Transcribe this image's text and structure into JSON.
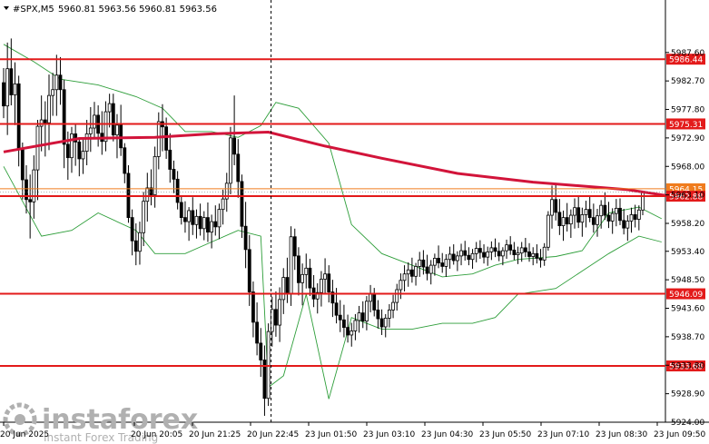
{
  "header": {
    "symbol": "#SPX,M5",
    "ohlc": "5960.81 5963.56 5960.81 5963.56"
  },
  "watermark": {
    "brand": "instaforex",
    "tagline": "Instant Forex Trading"
  },
  "colors": {
    "candle": "#000000",
    "ma": "#d2143a",
    "bands": "#2e9e3a",
    "level": "#e31a1a",
    "level_orange": "#f07c1e",
    "current": "#8a8a8a"
  },
  "chart_data": {
    "type": "candlestick",
    "ylim": [
      5924.0,
      5991.0
    ],
    "y_ticks": [
      "5987.60",
      "5982.70",
      "5977.80",
      "5972.90",
      "5968.00",
      "5963.10",
      "5958.20",
      "5953.40",
      "5948.50",
      "5943.60",
      "5938.70",
      "5933.80",
      "5928.90",
      "5924.00"
    ],
    "x_ticks": [
      "20 Jun 2025",
      "20 Jun 20:05",
      "20 Jun 21:25",
      "20 Jun 22:45",
      "23 Jun 01:50",
      "23 Jun 03:10",
      "23 Jun 04:30",
      "23 Jun 05:50",
      "23 Jun 07:10",
      "23 Jun 08:30",
      "23 Jun 09:50"
    ],
    "levels": [
      {
        "label": "5986.44",
        "value": 5986.44,
        "color": "#e31a1a"
      },
      {
        "label": "5975.31",
        "value": 5975.31,
        "color": "#e31a1a"
      },
      {
        "label": "5964.15",
        "value": 5964.15,
        "color": "#f07c1e"
      },
      {
        "label": "5962.88",
        "value": 5962.88,
        "color": "#e31a1a"
      },
      {
        "label": "5946.09",
        "value": 5946.09,
        "color": "#e31a1a"
      },
      {
        "label": "5933.68",
        "value": 5933.68,
        "color": "#e31a1a"
      }
    ],
    "current_price": 5963.56,
    "session_break_index": 70,
    "ma_values": [
      [
        0,
        5970.5
      ],
      [
        20,
        5972.8
      ],
      [
        40,
        5973.0
      ],
      [
        55,
        5973.6
      ],
      [
        70,
        5973.9
      ],
      [
        85,
        5971.5
      ],
      [
        100,
        5969.4
      ],
      [
        120,
        5966.8
      ],
      [
        140,
        5965.3
      ],
      [
        165,
        5964.0
      ],
      [
        176,
        5962.9
      ]
    ],
    "bands_upper": [
      [
        0,
        5989
      ],
      [
        8,
        5986
      ],
      [
        15,
        5983
      ],
      [
        25,
        5982
      ],
      [
        35,
        5980
      ],
      [
        42,
        5978
      ],
      [
        48,
        5974
      ],
      [
        55,
        5974
      ],
      [
        62,
        5973
      ],
      [
        68,
        5975
      ],
      [
        72,
        5979
      ],
      [
        78,
        5978
      ],
      [
        86,
        5972
      ],
      [
        92,
        5958
      ],
      [
        100,
        5953
      ],
      [
        108,
        5951
      ],
      [
        116,
        5949
      ],
      [
        124,
        5949.5
      ],
      [
        130,
        5951
      ],
      [
        136,
        5952
      ],
      [
        146,
        5952.5
      ],
      [
        153,
        5953.5
      ],
      [
        160,
        5960
      ],
      [
        168,
        5961
      ],
      [
        174,
        5959
      ]
    ],
    "bands_lower": [
      [
        0,
        5968
      ],
      [
        5,
        5962
      ],
      [
        10,
        5956
      ],
      [
        18,
        5957
      ],
      [
        25,
        5960
      ],
      [
        35,
        5957
      ],
      [
        40,
        5953
      ],
      [
        48,
        5953
      ],
      [
        55,
        5955
      ],
      [
        62,
        5957
      ],
      [
        68,
        5956
      ],
      [
        70,
        5930
      ],
      [
        74,
        5932
      ],
      [
        80,
        5946
      ],
      [
        86,
        5928
      ],
      [
        92,
        5942
      ],
      [
        100,
        5940
      ],
      [
        108,
        5940
      ],
      [
        116,
        5941
      ],
      [
        124,
        5941
      ],
      [
        130,
        5942
      ],
      [
        136,
        5946
      ],
      [
        146,
        5947
      ],
      [
        153,
        5950
      ],
      [
        160,
        5953
      ],
      [
        168,
        5956
      ],
      [
        174,
        5955
      ]
    ],
    "candles": [
      [
        5982.4,
        5984.9,
        5976.3,
        5978.4
      ],
      [
        5978.4,
        5989.3,
        5973.4,
        5984.8
      ],
      [
        5984.8,
        5990.0,
        5978.5,
        5980.3
      ],
      [
        5980.3,
        5985.9,
        5975.1,
        5982.2
      ],
      [
        5982.2,
        5983.6,
        5968.0,
        5971.1
      ],
      [
        5971.1,
        5972.1,
        5962.3,
        5965.7
      ],
      [
        5965.7,
        5968.2,
        5959.9,
        5962.3
      ],
      [
        5962.3,
        5966.6,
        5955.6,
        5961.9
      ],
      [
        5961.9,
        5969.9,
        5959.0,
        5967.4
      ],
      [
        5967.4,
        5976.0,
        5962.2,
        5974.9
      ],
      [
        5974.9,
        5980.2,
        5970.6,
        5976.0
      ],
      [
        5976.0,
        5979.2,
        5969.7,
        5975.5
      ],
      [
        5975.5,
        5983.8,
        5970.8,
        5980.2
      ],
      [
        5980.2,
        5984.1,
        5976.7,
        5981.2
      ],
      [
        5981.2,
        5987.2,
        5976.7,
        5983.7
      ],
      [
        5983.7,
        5986.8,
        5978.6,
        5981.2
      ],
      [
        5981.2,
        5982.9,
        5967.7,
        5971.8
      ],
      [
        5971.8,
        5974.0,
        5965.7,
        5969.5
      ],
      [
        5969.5,
        5974.8,
        5966.9,
        5973.6
      ],
      [
        5973.6,
        5975.2,
        5968.1,
        5972.2
      ],
      [
        5972.2,
        5972.8,
        5966.3,
        5969.3
      ],
      [
        5969.3,
        5972.6,
        5966.7,
        5970.6
      ],
      [
        5970.6,
        5976.0,
        5968.2,
        5973.6
      ],
      [
        5973.6,
        5978.2,
        5970.5,
        5974.6
      ],
      [
        5974.6,
        5979.1,
        5973.0,
        5976.8
      ],
      [
        5976.8,
        5978.5,
        5971.4,
        5973.7
      ],
      [
        5973.7,
        5977.5,
        5970.0,
        5972.3
      ],
      [
        5972.3,
        5979.2,
        5970.6,
        5977.4
      ],
      [
        5977.4,
        5980.5,
        5974.7,
        5978.8
      ],
      [
        5978.8,
        5980.5,
        5972.3,
        5973.4
      ],
      [
        5973.4,
        5977.0,
        5969.4,
        5975.1
      ],
      [
        5975.1,
        5978.6,
        5969.8,
        5971.2
      ],
      [
        5971.2,
        5972.0,
        5965.1,
        5966.8
      ],
      [
        5966.8,
        5968.2,
        5958.3,
        5959.2
      ],
      [
        5959.2,
        5960.6,
        5952.7,
        5955.2
      ],
      [
        5955.2,
        5958.2,
        5951.0,
        5953.4
      ],
      [
        5953.4,
        5958.5,
        5951.1,
        5956.6
      ],
      [
        5956.6,
        5963.6,
        5954.3,
        5962.0
      ],
      [
        5962.0,
        5966.9,
        5958.5,
        5964.3
      ],
      [
        5964.3,
        5967.5,
        5961.3,
        5963.1
      ],
      [
        5963.1,
        5971.4,
        5960.9,
        5969.7
      ],
      [
        5969.7,
        5977.3,
        5967.5,
        5975.7
      ],
      [
        5975.7,
        5978.7,
        5970.6,
        5974.8
      ],
      [
        5974.8,
        5976.4,
        5969.3,
        5970.8
      ],
      [
        5970.8,
        5973.7,
        5965.2,
        5967.5
      ],
      [
        5967.5,
        5969.0,
        5963.4,
        5965.8
      ],
      [
        5965.8,
        5967.2,
        5960.6,
        5961.8
      ],
      [
        5961.8,
        5963.0,
        5958.0,
        5959.2
      ],
      [
        5959.2,
        5962.0,
        5956.6,
        5958.5
      ],
      [
        5958.5,
        5961.0,
        5955.2,
        5960.4
      ],
      [
        5960.4,
        5962.7,
        5956.2,
        5958.0
      ],
      [
        5958.0,
        5960.6,
        5955.6,
        5959.4
      ],
      [
        5959.4,
        5961.6,
        5956.1,
        5957.3
      ],
      [
        5957.3,
        5960.3,
        5955.3,
        5959.2
      ],
      [
        5959.2,
        5961.8,
        5955.0,
        5956.7
      ],
      [
        5956.7,
        5959.7,
        5953.9,
        5958.5
      ],
      [
        5958.5,
        5961.3,
        5956.1,
        5957.6
      ],
      [
        5957.6,
        5961.6,
        5955.5,
        5960.6
      ],
      [
        5960.6,
        5964.0,
        5958.0,
        5962.4
      ],
      [
        5962.4,
        5966.9,
        5960.2,
        5965.1
      ],
      [
        5965.1,
        5974.8,
        5963.2,
        5972.9
      ],
      [
        5972.9,
        5980.2,
        5968.2,
        5970.1
      ],
      [
        5970.1,
        5972.7,
        5962.6,
        5965.4
      ],
      [
        5965.4,
        5966.6,
        5955.7,
        5957.7
      ],
      [
        5957.7,
        5961.9,
        5950.5,
        5953.7
      ],
      [
        5953.7,
        5956.2,
        5944.0,
        5946.4
      ],
      [
        5946.4,
        5948.2,
        5938.6,
        5941.2
      ],
      [
        5941.2,
        5944.6,
        5935.5,
        5937.6
      ],
      [
        5937.6,
        5940.2,
        5931.8,
        5934.7
      ],
      [
        5934.7,
        5937.2,
        5925.1,
        5928.1
      ],
      [
        5928.1,
        5941.0,
        5926.8,
        5939.6
      ],
      [
        5939.6,
        5945.6,
        5937.0,
        5943.4
      ],
      [
        5943.4,
        5946.5,
        5938.7,
        5940.7
      ],
      [
        5940.7,
        5947.2,
        5937.8,
        5945.1
      ],
      [
        5945.1,
        5950.5,
        5942.6,
        5948.9
      ],
      [
        5948.9,
        5952.3,
        5944.5,
        5946.1
      ],
      [
        5946.1,
        5957.7,
        5944.0,
        5955.9
      ],
      [
        5955.9,
        5957.3,
        5950.2,
        5952.6
      ],
      [
        5952.6,
        5954.1,
        5945.8,
        5948.0
      ],
      [
        5948.0,
        5951.3,
        5944.1,
        5949.4
      ],
      [
        5949.4,
        5953.0,
        5947.0,
        5950.5
      ],
      [
        5950.5,
        5952.1,
        5945.7,
        5947.1
      ],
      [
        5947.1,
        5949.3,
        5943.8,
        5945.2
      ],
      [
        5945.2,
        5947.9,
        5942.7,
        5946.3
      ],
      [
        5946.3,
        5950.0,
        5943.9,
        5948.6
      ],
      [
        5948.6,
        5952.2,
        5946.1,
        5949.5
      ],
      [
        5949.5,
        5951.0,
        5944.6,
        5946.4
      ],
      [
        5946.4,
        5948.5,
        5942.1,
        5944.5
      ],
      [
        5944.5,
        5947.1,
        5941.0,
        5942.4
      ],
      [
        5942.4,
        5945.0,
        5939.5,
        5941.6
      ],
      [
        5941.6,
        5944.2,
        5938.6,
        5940.3
      ],
      [
        5940.3,
        5942.5,
        5937.7,
        5939.0
      ],
      [
        5939.0,
        5941.1,
        5937.0,
        5939.7
      ],
      [
        5939.7,
        5942.6,
        5938.1,
        5941.5
      ],
      [
        5941.5,
        5944.0,
        5939.4,
        5942.8
      ],
      [
        5942.8,
        5944.8,
        5940.2,
        5941.4
      ],
      [
        5941.4,
        5945.7,
        5939.8,
        5944.8
      ],
      [
        5944.8,
        5947.6,
        5942.9,
        5946.0
      ],
      [
        5946.0,
        5947.1,
        5942.2,
        5943.3
      ],
      [
        5943.3,
        5945.0,
        5940.1,
        5941.8
      ],
      [
        5941.8,
        5943.4,
        5939.0,
        5940.4
      ],
      [
        5940.4,
        5942.6,
        5938.6,
        5941.9
      ],
      [
        5941.9,
        5944.3,
        5940.3,
        5943.3
      ],
      [
        5943.3,
        5945.9,
        5941.9,
        5944.6
      ],
      [
        5944.6,
        5947.8,
        5943.2,
        5946.8
      ],
      [
        5946.8,
        5949.6,
        5945.2,
        5948.4
      ],
      [
        5948.4,
        5951.0,
        5946.5,
        5949.5
      ],
      [
        5949.5,
        5951.5,
        5947.3,
        5950.2
      ],
      [
        5950.2,
        5952.3,
        5948.0,
        5949.1
      ],
      [
        5949.1,
        5951.4,
        5947.5,
        5950.8
      ],
      [
        5950.8,
        5953.3,
        5949.0,
        5951.9
      ],
      [
        5951.9,
        5953.6,
        5949.4,
        5950.7
      ],
      [
        5950.7,
        5952.8,
        5948.4,
        5949.6
      ],
      [
        5949.6,
        5951.9,
        5947.7,
        5951.0
      ],
      [
        5951.0,
        5953.0,
        5949.2,
        5952.2
      ],
      [
        5952.2,
        5954.4,
        5950.5,
        5951.4
      ],
      [
        5951.4,
        5953.1,
        5949.7,
        5950.8
      ],
      [
        5950.8,
        5952.9,
        5949.0,
        5952.0
      ],
      [
        5952.0,
        5954.2,
        5950.4,
        5952.9
      ],
      [
        5952.9,
        5954.6,
        5951.1,
        5951.8
      ],
      [
        5951.8,
        5953.4,
        5950.0,
        5952.6
      ],
      [
        5952.6,
        5954.7,
        5951.0,
        5953.5
      ],
      [
        5953.5,
        5955.2,
        5951.8,
        5952.7
      ],
      [
        5952.7,
        5954.1,
        5951.0,
        5952.0
      ],
      [
        5952.0,
        5953.8,
        5950.4,
        5953.0
      ],
      [
        5953.0,
        5955.0,
        5951.5,
        5953.9
      ],
      [
        5953.9,
        5955.3,
        5952.1,
        5953.2
      ],
      [
        5953.2,
        5954.6,
        5951.3,
        5952.4
      ],
      [
        5952.4,
        5954.2,
        5950.9,
        5953.3
      ],
      [
        5953.3,
        5955.1,
        5951.9,
        5954.0
      ],
      [
        5954.0,
        5955.6,
        5952.4,
        5953.4
      ],
      [
        5953.4,
        5954.9,
        5951.7,
        5952.6
      ],
      [
        5952.6,
        5954.1,
        5951.0,
        5953.5
      ],
      [
        5953.5,
        5955.4,
        5952.1,
        5954.5
      ],
      [
        5954.5,
        5956.0,
        5952.8,
        5953.6
      ],
      [
        5953.6,
        5955.0,
        5951.9,
        5952.8
      ],
      [
        5952.8,
        5954.2,
        5951.2,
        5953.1
      ],
      [
        5953.1,
        5955.0,
        5951.6,
        5954.0
      ],
      [
        5954.0,
        5955.7,
        5952.4,
        5953.3
      ],
      [
        5953.3,
        5954.8,
        5951.6,
        5952.5
      ],
      [
        5952.5,
        5954.1,
        5951.0,
        5953.0
      ],
      [
        5953.0,
        5954.6,
        5951.3,
        5952.2
      ],
      [
        5952.2,
        5953.8,
        5950.6,
        5951.9
      ],
      [
        5951.9,
        5954.8,
        5950.9,
        5954.1
      ],
      [
        5954.1,
        5960.3,
        5953.5,
        5959.6
      ],
      [
        5959.6,
        5964.7,
        5957.3,
        5962.3
      ],
      [
        5962.3,
        5964.8,
        5958.7,
        5960.1
      ],
      [
        5960.1,
        5962.4,
        5956.2,
        5957.8
      ],
      [
        5957.8,
        5960.4,
        5955.2,
        5959.2
      ],
      [
        5959.2,
        5961.7,
        5956.8,
        5958.1
      ],
      [
        5958.1,
        5960.6,
        5955.7,
        5959.6
      ],
      [
        5959.6,
        5962.5,
        5957.3,
        5960.9
      ],
      [
        5960.9,
        5962.8,
        5957.4,
        5958.4
      ],
      [
        5958.4,
        5960.9,
        5955.9,
        5959.7
      ],
      [
        5959.7,
        5962.1,
        5957.5,
        5960.6
      ],
      [
        5960.6,
        5962.9,
        5958.4,
        5959.2
      ],
      [
        5959.2,
        5961.6,
        5956.6,
        5958.0
      ],
      [
        5958.0,
        5960.7,
        5955.9,
        5959.5
      ],
      [
        5959.5,
        5962.2,
        5957.3,
        5961.3
      ],
      [
        5961.3,
        5963.5,
        5958.8,
        5959.6
      ],
      [
        5959.6,
        5961.9,
        5957.4,
        5958.6
      ],
      [
        5958.6,
        5960.8,
        5956.4,
        5959.9
      ],
      [
        5959.9,
        5962.4,
        5957.7,
        5960.8
      ],
      [
        5960.8,
        5962.5,
        5957.9,
        5958.7
      ],
      [
        5958.7,
        5960.7,
        5956.3,
        5957.4
      ],
      [
        5957.4,
        5959.6,
        5955.2,
        5958.6
      ],
      [
        5958.6,
        5960.9,
        5956.6,
        5959.7
      ],
      [
        5959.7,
        5961.4,
        5957.5,
        5958.9
      ],
      [
        5958.9,
        5961.3,
        5957.0,
        5960.5
      ],
      [
        5960.5,
        5963.6,
        5959.6,
        5963.56
      ]
    ]
  }
}
